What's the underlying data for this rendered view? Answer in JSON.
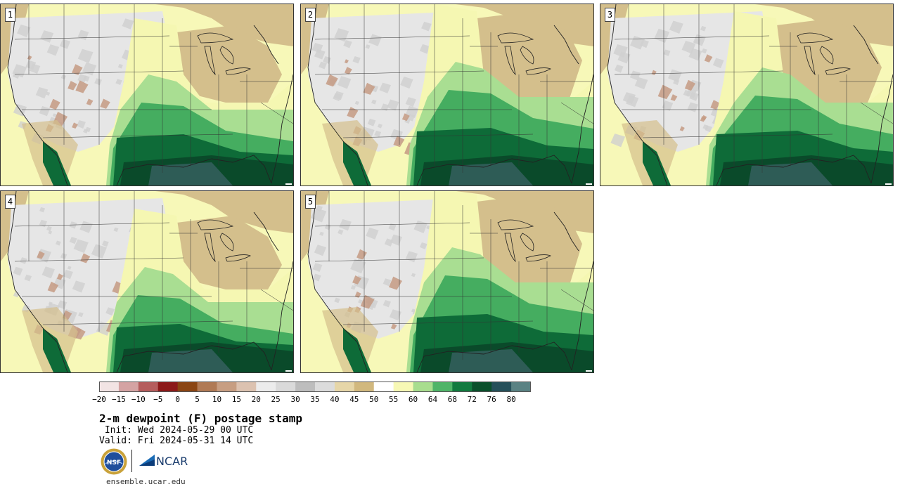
{
  "title": "2-m dewpoint (F) postage stamp",
  "init_line": " Init: Wed 2024-05-29 00 UTC",
  "valid_line": "Valid: Fri 2024-05-31 14 UTC",
  "footer_url": "ensemble.ucar.edu",
  "logos": {
    "nsf": "NSF",
    "ncar": "NCAR"
  },
  "panels": [
    {
      "label": "1"
    },
    {
      "label": "2"
    },
    {
      "label": "3"
    },
    {
      "label": "4"
    },
    {
      "label": "5"
    }
  ],
  "colorbar": {
    "tick_labels": [
      "−20",
      "−15",
      "−10",
      "−5",
      "0",
      "5",
      "10",
      "15",
      "20",
      "25",
      "30",
      "35",
      "40",
      "45",
      "50",
      "55",
      "60",
      "64",
      "68",
      "72",
      "76",
      "80"
    ],
    "colors": [
      "#f2e4e4",
      "#d4a3a3",
      "#b55d5d",
      "#8c1a1a",
      "#8a4513",
      "#b07a55",
      "#c79e82",
      "#dcc2b0",
      "#ececec",
      "#dadada",
      "#bdbdbd",
      "#dcdcdc",
      "#e6d6a8",
      "#d1b87e",
      "#ffffff",
      "#f7f8b5",
      "#a8dd8e",
      "#4fb468",
      "#117a3f",
      "#0a4f2b",
      "#26505a",
      "#5a8283"
    ]
  },
  "map_colors": {
    "ocean_west": "#f7f8b8",
    "gulf": "#2e5c56",
    "dry_tan": "#d4bf8c",
    "mountain_gray": "#cfcfcf",
    "plains_gray": "#e6e6e6",
    "yellow": "#f5f7b2",
    "light_green": "#a9de92",
    "mid_green": "#45ad60",
    "dark_green": "#0e6b38",
    "deepest_green": "#0a4a2a",
    "brown": "#c49a82",
    "line": "#222222"
  }
}
